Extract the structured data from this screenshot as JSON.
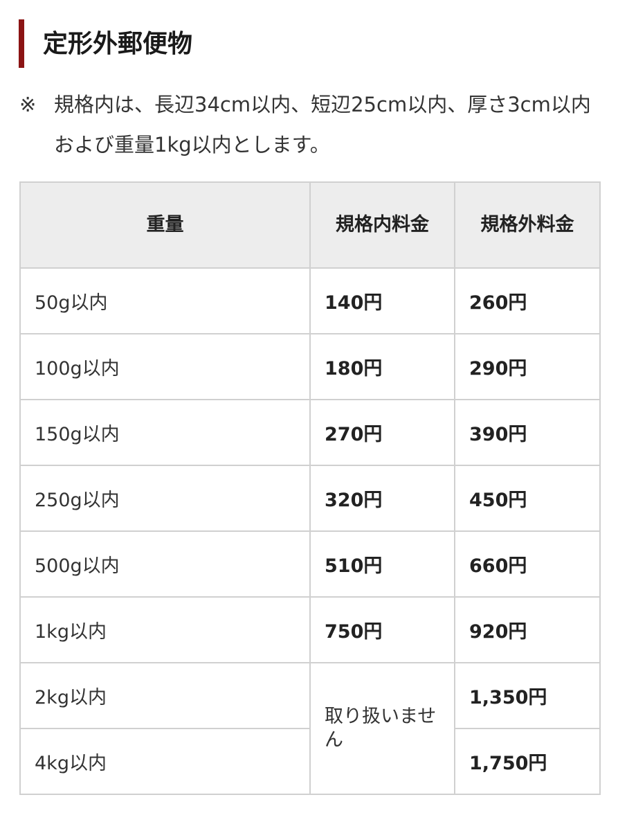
{
  "title": "定形外郵便物",
  "note": {
    "mark": "※",
    "text": "規格内は、長辺34cm以内、短辺25cm以内、厚さ3cm以内および重量1kg以内とします。"
  },
  "table": {
    "headers": [
      "重量",
      "規格内料金",
      "規格外料金"
    ],
    "rows": [
      {
        "weight": "50g以内",
        "standard": "140円",
        "nonstandard": "260円"
      },
      {
        "weight": "100g以内",
        "standard": "180円",
        "nonstandard": "290円"
      },
      {
        "weight": "150g以内",
        "standard": "270円",
        "nonstandard": "390円"
      },
      {
        "weight": "250g以内",
        "standard": "320円",
        "nonstandard": "450円"
      },
      {
        "weight": "500g以内",
        "standard": "510円",
        "nonstandard": "660円"
      },
      {
        "weight": "1kg以内",
        "standard": "750円",
        "nonstandard": "920円"
      },
      {
        "weight": "2kg以内",
        "nonstandard": "1,350円"
      },
      {
        "weight": "4kg以内",
        "nonstandard": "1,750円"
      }
    ],
    "not_handled": "取り扱いません"
  },
  "colors": {
    "accent": "#8b1414",
    "header_bg": "#ededed",
    "border": "#d0d0d0"
  }
}
